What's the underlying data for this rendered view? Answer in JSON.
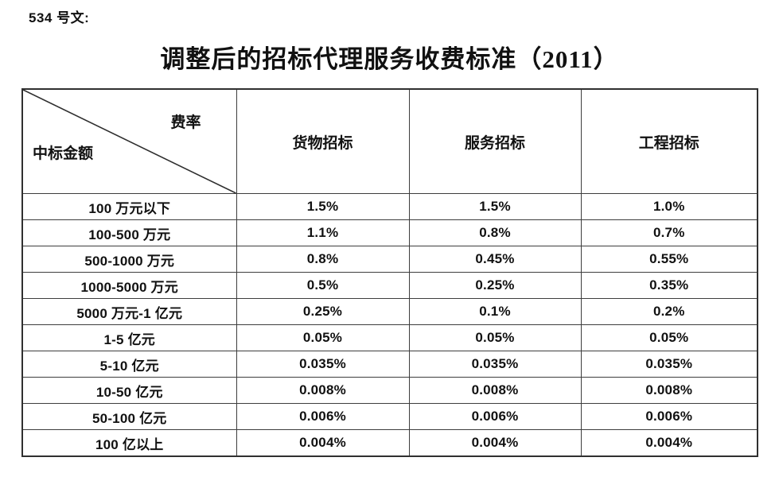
{
  "doc": {
    "ref_label": "534 号文:",
    "title": "调整后的招标代理服务收费标准（2011）"
  },
  "table": {
    "corner": {
      "top_right": "费率",
      "bottom_left": "中标金额"
    },
    "columns": [
      "货物招标",
      "服务招标",
      "工程招标"
    ],
    "rows": [
      {
        "amount": "100 万元以下",
        "values": [
          "1.5%",
          "1.5%",
          "1.0%"
        ]
      },
      {
        "amount": "100-500 万元",
        "values": [
          "1.1%",
          "0.8%",
          "0.7%"
        ]
      },
      {
        "amount": "500-1000 万元",
        "values": [
          "0.8%",
          "0.45%",
          "0.55%"
        ]
      },
      {
        "amount": "1000-5000 万元",
        "values": [
          "0.5%",
          "0.25%",
          "0.35%"
        ]
      },
      {
        "amount": "5000 万元-1 亿元",
        "values": [
          "0.25%",
          "0.1%",
          "0.2%"
        ]
      },
      {
        "amount": "1-5 亿元",
        "values": [
          "0.05%",
          "0.05%",
          "0.05%"
        ]
      },
      {
        "amount": "5-10 亿元",
        "values": [
          "0.035%",
          "0.035%",
          "0.035%"
        ]
      },
      {
        "amount": "10-50 亿元",
        "values": [
          "0.008%",
          "0.008%",
          "0.008%"
        ]
      },
      {
        "amount": "50-100 亿元",
        "values": [
          "0.006%",
          "0.006%",
          "0.006%"
        ]
      },
      {
        "amount": "100 亿以上",
        "values": [
          "0.004%",
          "0.004%",
          "0.004%"
        ]
      }
    ]
  },
  "colors": {
    "text": "#111111",
    "border": "#3d3d3d",
    "outer_border": "#303030",
    "background": "#ffffff"
  }
}
